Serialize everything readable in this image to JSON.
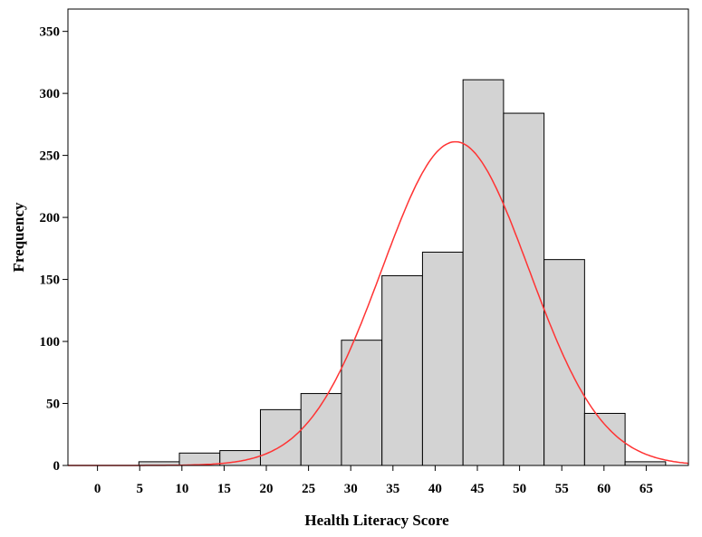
{
  "chart_data": {
    "type": "bar",
    "title": "",
    "xlabel": "Health Literacy Score",
    "ylabel": "Frequency",
    "x_ticks": [
      0,
      5,
      10,
      15,
      20,
      25,
      30,
      35,
      40,
      45,
      50,
      55,
      60,
      65
    ],
    "y_ticks": [
      0,
      50,
      100,
      150,
      200,
      250,
      300,
      350
    ],
    "xlim": [
      -3.5,
      70
    ],
    "ylim": [
      0,
      368
    ],
    "bin_width": 4.8,
    "bins": [
      {
        "start": 4.9,
        "end": 9.7,
        "count": 3
      },
      {
        "start": 9.7,
        "end": 14.5,
        "count": 10
      },
      {
        "start": 14.5,
        "end": 19.3,
        "count": 12
      },
      {
        "start": 19.3,
        "end": 24.1,
        "count": 45
      },
      {
        "start": 24.1,
        "end": 28.9,
        "count": 58
      },
      {
        "start": 28.9,
        "end": 33.7,
        "count": 101
      },
      {
        "start": 33.7,
        "end": 38.5,
        "count": 153
      },
      {
        "start": 38.5,
        "end": 43.3,
        "count": 172
      },
      {
        "start": 43.3,
        "end": 48.1,
        "count": 311
      },
      {
        "start": 48.1,
        "end": 52.9,
        "count": 284
      },
      {
        "start": 52.9,
        "end": 57.7,
        "count": 166
      },
      {
        "start": 57.7,
        "end": 62.5,
        "count": 42
      },
      {
        "start": 62.5,
        "end": 67.3,
        "count": 3
      }
    ],
    "normal_curve": {
      "mean": 42.4,
      "sd": 8.7,
      "peak": 261,
      "color": "#ff3333"
    },
    "bar_fill": "#d3d3d3",
    "bar_stroke": "#000000",
    "grid": false,
    "legend": "none"
  }
}
